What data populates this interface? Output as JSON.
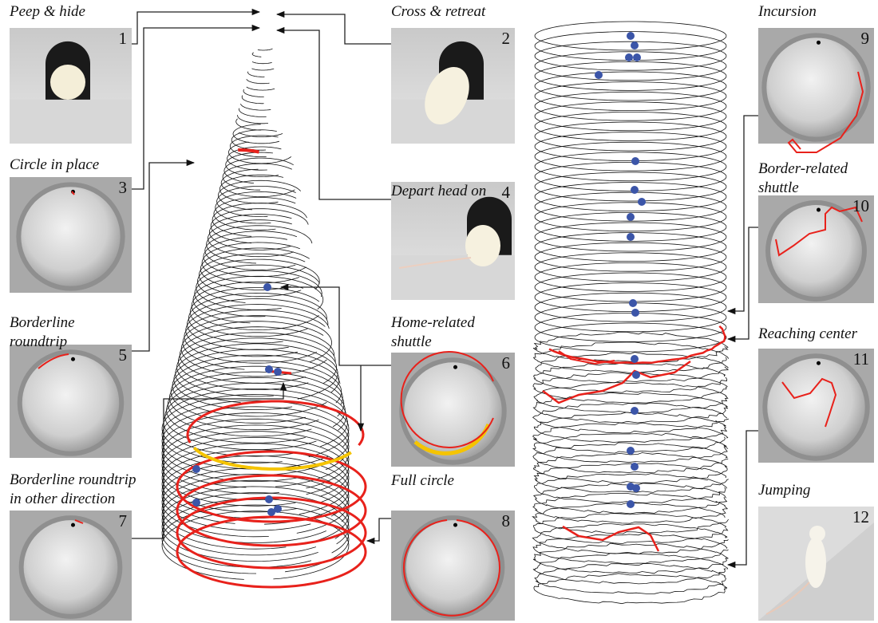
{
  "panels": [
    {
      "title": [
        "Peep & hide"
      ],
      "number": 1
    },
    {
      "title": [
        "Cross & retreat"
      ],
      "number": 2
    },
    {
      "title": [
        "Circle in place"
      ],
      "number": 3
    },
    {
      "title": [
        "Depart head on"
      ],
      "number": 4
    },
    {
      "title": [
        "Borderline",
        "roundtrip"
      ],
      "number": 5
    },
    {
      "title": [
        "Home-related",
        "shuttle"
      ],
      "number": 6
    },
    {
      "title": [
        "Borderline roundtrip",
        "in other direction"
      ],
      "number": 7
    },
    {
      "title": [
        "Full circle"
      ],
      "number": 8
    },
    {
      "title": [
        "Incursion"
      ],
      "number": 9
    },
    {
      "title": [
        "Border-related",
        "shuttle"
      ],
      "number": 10
    },
    {
      "title": [
        "Reaching center"
      ],
      "number": 11
    },
    {
      "title": [
        "Jumping"
      ],
      "number": 12
    }
  ]
}
